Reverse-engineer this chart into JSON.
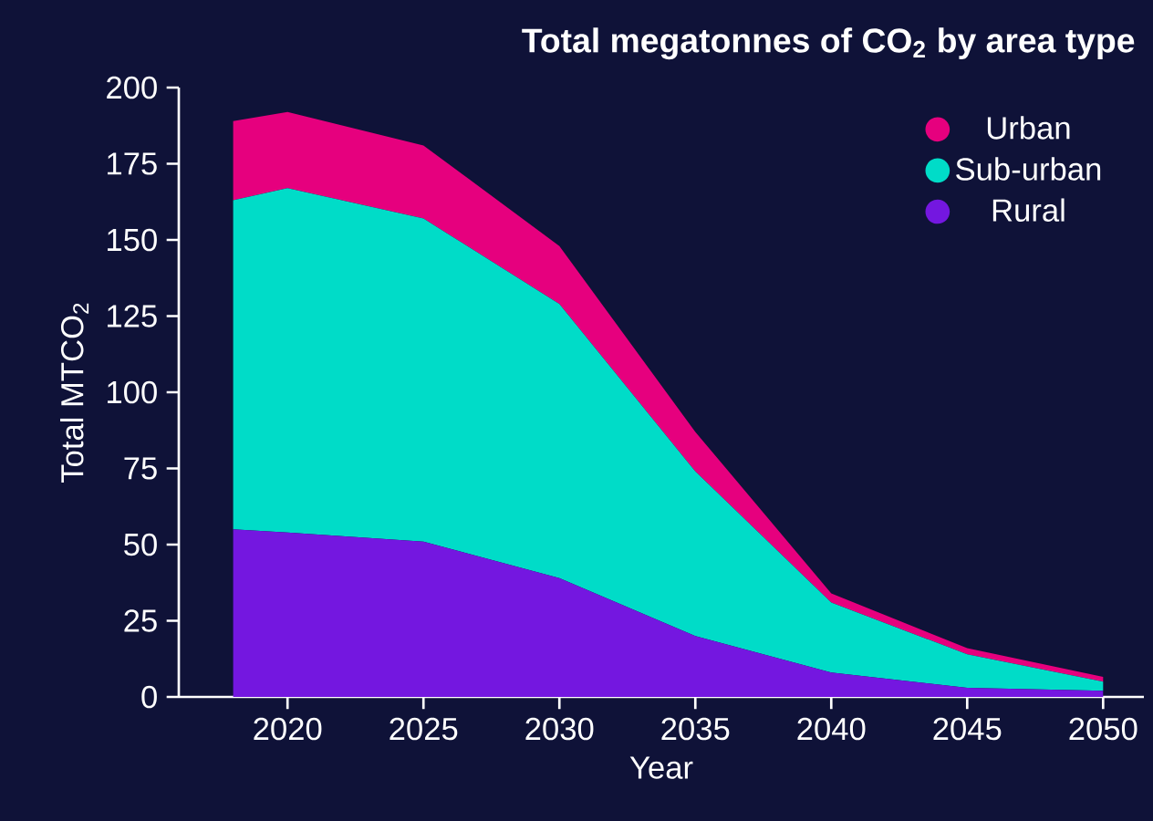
{
  "chart_data": {
    "type": "area",
    "title": "Total megatonnes of CO$_{2}$ by area type",
    "xlabel": "Year",
    "ylabel": "Total MTCO$_{2}$",
    "stacked": true,
    "legend": "top right",
    "grid": false,
    "x": [
      2018,
      2020,
      2025,
      2030,
      2035,
      2040,
      2045,
      2050
    ],
    "series": [
      {
        "name": "Rural",
        "color": "#7417e0",
        "values": [
          55,
          54,
          51,
          39,
          20,
          8,
          3,
          2
        ]
      },
      {
        "name": "Sub-urban",
        "color": "#00dcc8",
        "values": [
          108,
          113,
          106,
          90,
          54,
          23,
          11,
          3
        ]
      },
      {
        "name": "Urban",
        "color": "#e6007e",
        "values": [
          26,
          25,
          24,
          19,
          13,
          3,
          2,
          1.6
        ]
      }
    ],
    "xlim": [
      2016,
      2051.5
    ],
    "ylim": [
      0,
      200
    ],
    "xticks": [
      2020,
      2025,
      2030,
      2035,
      2040,
      2045,
      2050
    ],
    "yticks": [
      0,
      25,
      50,
      75,
      100,
      125,
      150,
      175,
      200
    ]
  }
}
